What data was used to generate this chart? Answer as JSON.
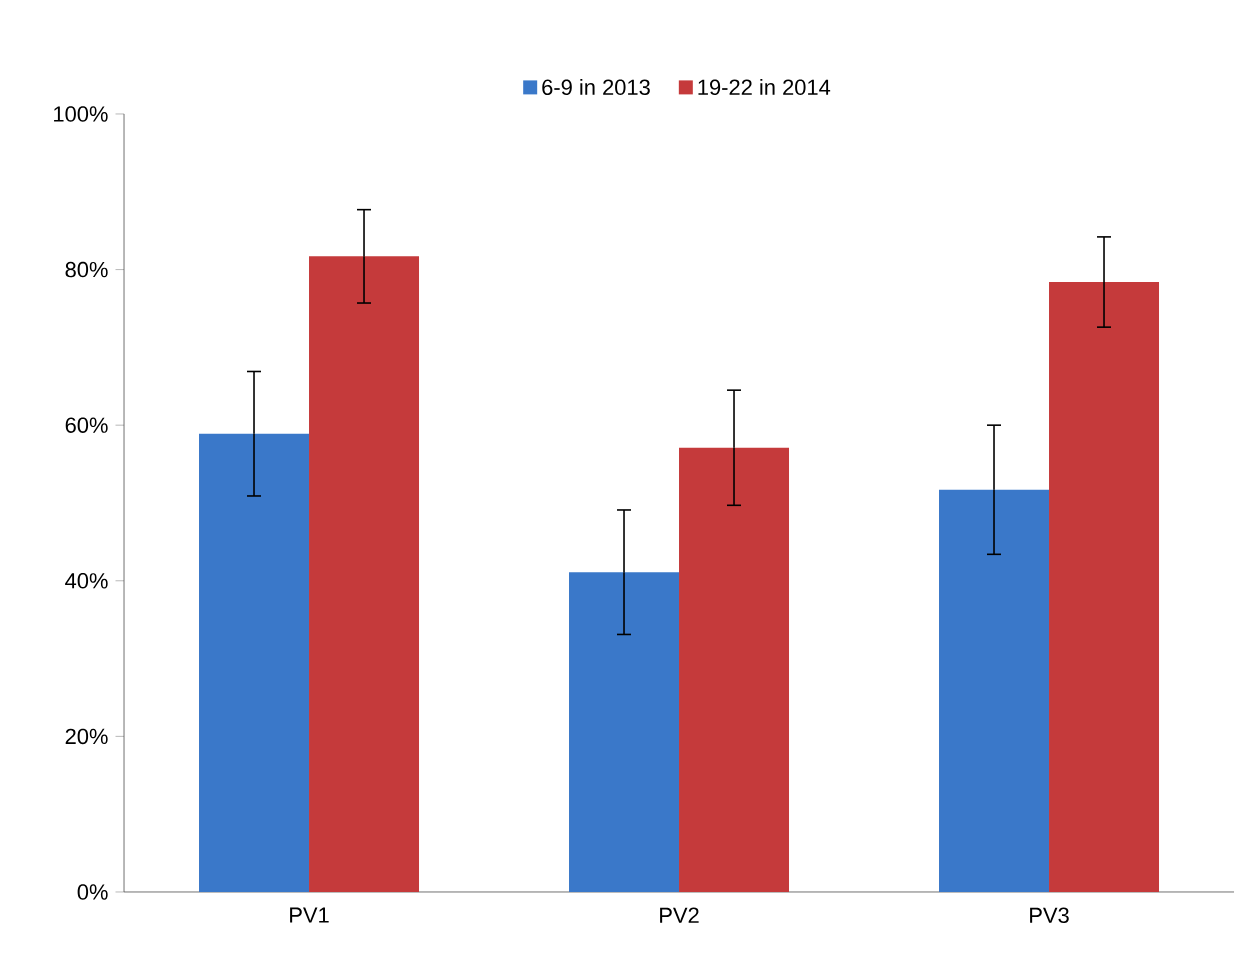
{
  "chart_data": {
    "type": "bar",
    "categories": [
      "PV1",
      "PV2",
      "PV3"
    ],
    "series": [
      {
        "name": "6-9 in 2013",
        "color": "#3a78c9",
        "values": [
          58.9,
          41.1,
          51.7
        ],
        "errors": [
          8,
          8,
          8.3
        ]
      },
      {
        "name": "19-22 in 2014",
        "color": "#c53a3b",
        "values": [
          81.7,
          57.1,
          78.4
        ],
        "errors": [
          6,
          7.4,
          5.8
        ]
      }
    ],
    "ylim": [
      0,
      100
    ],
    "yticks": [
      {
        "value": 0,
        "label": "0%"
      },
      {
        "value": 20,
        "label": "20%"
      },
      {
        "value": 40,
        "label": "40%"
      },
      {
        "value": 60,
        "label": "60%"
      },
      {
        "value": 80,
        "label": "80%"
      },
      {
        "value": 100,
        "label": "100%"
      }
    ],
    "legend": "top",
    "grid": false
  }
}
